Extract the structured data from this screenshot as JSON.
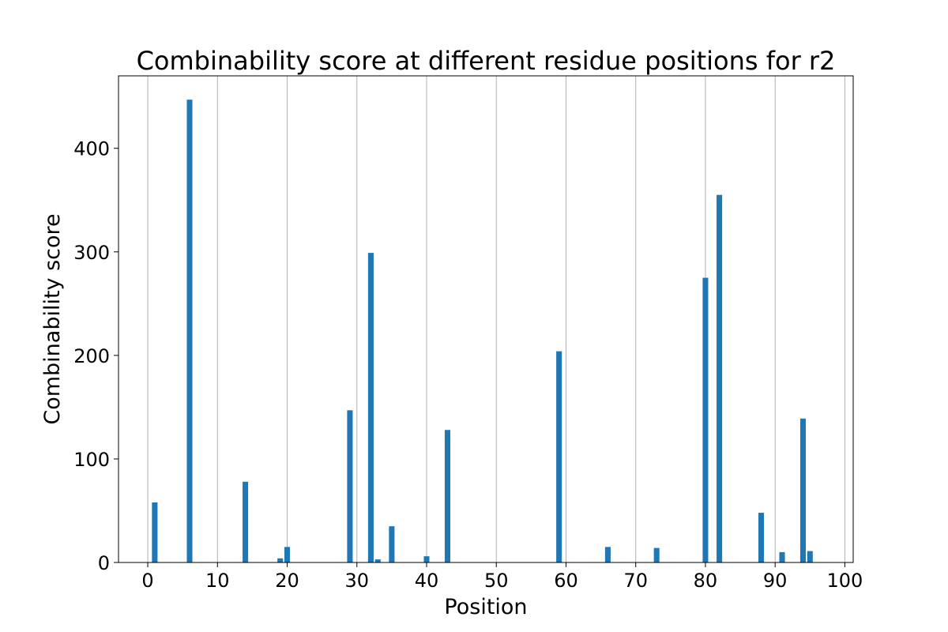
{
  "chart_data": {
    "type": "bar",
    "title": "Combinability score at different residue positions for r2",
    "xlabel": "Position",
    "ylabel": "Combinability score",
    "xlim": [
      -4.2,
      101.2
    ],
    "ylim": [
      0,
      470
    ],
    "xticks": [
      0,
      10,
      20,
      30,
      40,
      50,
      60,
      70,
      80,
      90,
      100
    ],
    "yticks": [
      0,
      100,
      200,
      300,
      400
    ],
    "grid": "x",
    "bar_color": "#1f77b4",
    "bar_width": 0.8,
    "x": [
      1,
      6,
      14,
      19,
      20,
      29,
      32,
      33,
      35,
      40,
      43,
      59,
      66,
      73,
      80,
      82,
      88,
      91,
      94,
      95
    ],
    "values": [
      58,
      447,
      78,
      4,
      15,
      147,
      299,
      3,
      35,
      6,
      128,
      204,
      15,
      14,
      275,
      355,
      48,
      10,
      139,
      11
    ]
  }
}
